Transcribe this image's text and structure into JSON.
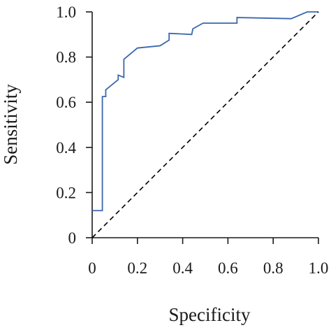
{
  "chart_data": {
    "type": "line",
    "title": "",
    "xlabel": "Specificity",
    "ylabel": "Sensitivity",
    "xlim": [
      0,
      1
    ],
    "ylim": [
      0,
      1
    ],
    "x_ticks": [
      0,
      0.2,
      0.4,
      0.6,
      0.8,
      1.0
    ],
    "x_tick_labels": [
      "0",
      "0.2",
      "0.4",
      "0.6",
      "0.8",
      "1.0"
    ],
    "y_ticks": [
      0,
      0.2,
      0.4,
      0.6,
      0.8,
      1.0
    ],
    "y_tick_labels": [
      "0",
      "0.2",
      "0.4",
      "0.6",
      "0.8",
      "1.0"
    ],
    "grid": false,
    "legend": "none",
    "series": [
      {
        "style": "solid",
        "color": "#3a67b0",
        "points": [
          [
            0.0,
            0.12
          ],
          [
            0.045,
            0.12
          ],
          [
            0.045,
            0.625
          ],
          [
            0.06,
            0.625
          ],
          [
            0.06,
            0.655
          ],
          [
            0.115,
            0.7
          ],
          [
            0.115,
            0.72
          ],
          [
            0.14,
            0.71
          ],
          [
            0.14,
            0.79
          ],
          [
            0.2,
            0.84
          ],
          [
            0.3,
            0.85
          ],
          [
            0.34,
            0.875
          ],
          [
            0.34,
            0.905
          ],
          [
            0.44,
            0.9
          ],
          [
            0.445,
            0.925
          ],
          [
            0.49,
            0.95
          ],
          [
            0.64,
            0.95
          ],
          [
            0.64,
            0.975
          ],
          [
            0.88,
            0.97
          ],
          [
            0.95,
            1.0
          ],
          [
            1.0,
            1.0
          ]
        ]
      },
      {
        "style": "dashed",
        "color": "#000000",
        "points": [
          [
            0,
            0
          ],
          [
            1,
            1
          ]
        ]
      }
    ]
  }
}
